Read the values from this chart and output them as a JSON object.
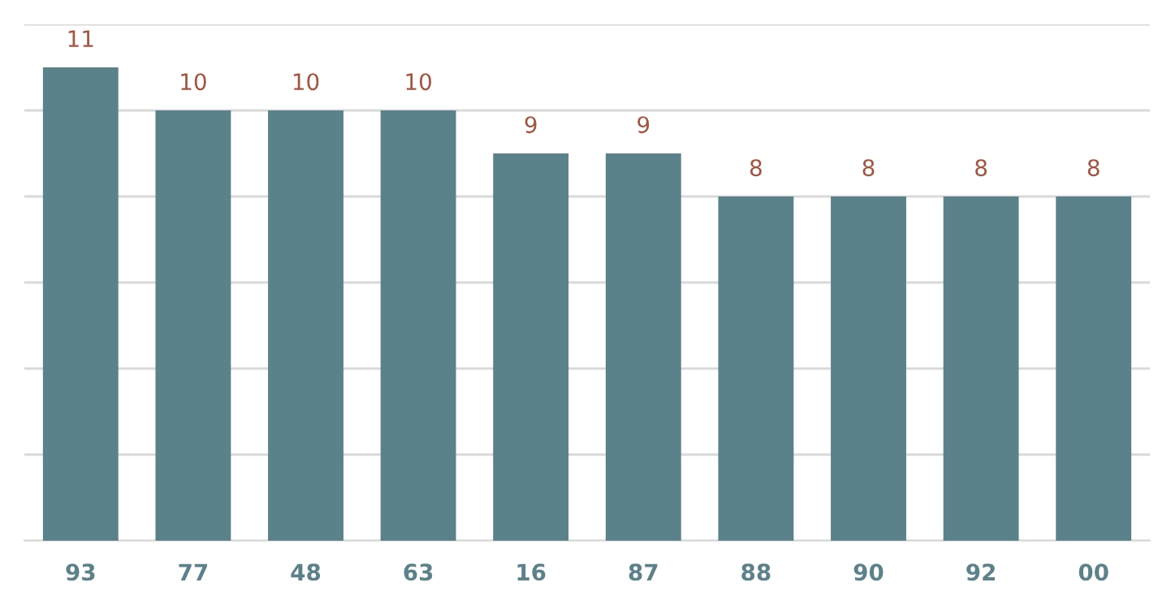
{
  "chart_data": {
    "type": "bar",
    "categories": [
      "93",
      "77",
      "48",
      "63",
      "16",
      "87",
      "88",
      "90",
      "92",
      "00"
    ],
    "values": [
      11,
      10,
      10,
      10,
      9,
      9,
      8,
      8,
      8,
      8
    ],
    "color": "#5b818a",
    "ylim": [
      0,
      12
    ],
    "yticks": [
      {
        "value": 0,
        "label": null
      },
      {
        "value": 2,
        "label": null
      },
      {
        "value": 4,
        "label": null
      },
      {
        "value": 6,
        "label": null
      },
      {
        "value": 8,
        "label": null
      },
      {
        "value": 10,
        "label": null
      },
      {
        "value": 12,
        "label": null
      }
    ],
    "grid": "y",
    "tick_labels": "x",
    "data_labels": true,
    "legend": false
  }
}
